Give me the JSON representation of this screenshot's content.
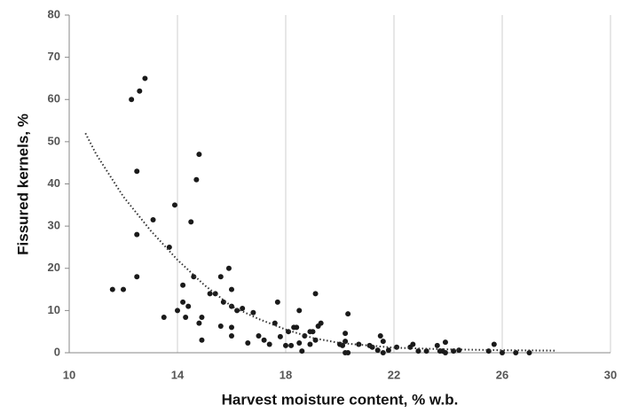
{
  "chart_data": {
    "type": "scatter",
    "x_label": "Harvest moisture content, % w.b.",
    "y_label": "Fissured kernels, %",
    "xlim": [
      10,
      30
    ],
    "xticks": [
      10,
      14,
      18,
      22,
      26,
      30
    ],
    "ylim": [
      0,
      80
    ],
    "yticks": [
      0,
      10,
      20,
      30,
      40,
      50,
      60,
      70,
      80
    ],
    "grid": "x",
    "series": [
      {
        "color": "#1a1a1a",
        "x": [
          11.6,
          12.0,
          12.3,
          12.6,
          12.8,
          12.5,
          12.5,
          12.5,
          13.1,
          13.5,
          13.7,
          13.9,
          14.0,
          14.2,
          14.2,
          14.3,
          14.4,
          14.5,
          14.6,
          14.7,
          14.8,
          14.8,
          14.9,
          14.9,
          15.2,
          15.4,
          15.6,
          15.6,
          15.7,
          15.9,
          16.0,
          16.0,
          16.0,
          16.0,
          16.2,
          16.4,
          16.6,
          16.8,
          17.0,
          17.2,
          17.4,
          17.6,
          17.7,
          17.8,
          18.0,
          18.1,
          18.2,
          18.3,
          18.4,
          18.5,
          18.5,
          18.6,
          18.7,
          18.9,
          18.9,
          19.0,
          19.1,
          19.2,
          19.3,
          19.1,
          20.0,
          20.1,
          20.2,
          20.2,
          20.3,
          20.2,
          20.3,
          20.7,
          21.1,
          21.2,
          21.4,
          21.5,
          21.6,
          21.6,
          21.8,
          22.1,
          22.6,
          22.7,
          22.9,
          23.2,
          23.6,
          23.7,
          23.8,
          23.9,
          23.9,
          24.2,
          24.4,
          25.5,
          25.7,
          26.0,
          26.5,
          27.0
        ],
        "values": [
          15,
          15,
          60,
          62,
          65,
          43,
          28,
          18,
          31.5,
          8.4,
          25,
          35,
          10,
          16,
          12,
          8.4,
          11,
          31,
          18,
          41,
          47,
          7,
          8.4,
          3,
          14,
          14,
          6.3,
          18,
          12,
          20,
          15,
          11,
          6,
          4,
          10,
          10.5,
          2.3,
          9.5,
          4,
          3,
          2,
          7,
          12,
          3.8,
          1.7,
          5,
          1.7,
          6,
          6,
          10,
          2.3,
          0.4,
          4,
          5,
          2,
          5,
          14,
          6.3,
          7,
          3,
          2,
          1.7,
          0,
          4.6,
          9.2,
          2.7,
          0,
          2,
          1.7,
          1.3,
          0.6,
          4,
          2.7,
          0,
          0.6,
          1.3,
          1.3,
          2,
          0.4,
          0.4,
          1.7,
          0.4,
          0.4,
          2.5,
          0,
          0.4,
          0.6,
          0.4,
          2,
          0,
          0,
          0
        ]
      },
      {
        "color": "#333333",
        "line": "dotted",
        "x": [
          10.6,
          11,
          12,
          13,
          14,
          15,
          16,
          17,
          18,
          19,
          20,
          22,
          24,
          26,
          28
        ],
        "values": [
          52,
          47,
          37,
          29,
          22,
          16,
          11,
          8,
          5.5,
          3.5,
          2.3,
          1.2,
          0.8,
          0.6,
          0.5
        ]
      }
    ]
  }
}
